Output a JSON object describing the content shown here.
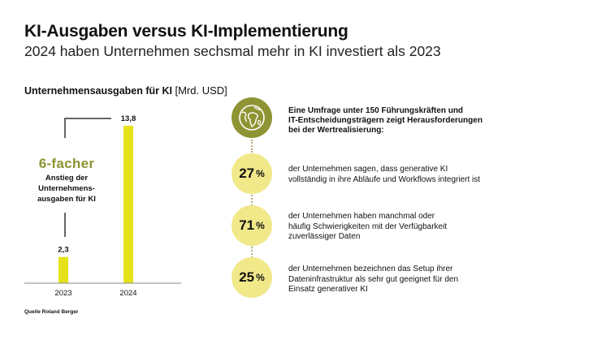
{
  "header": {
    "title": "KI-Ausgaben versus KI-Implementierung",
    "subtitle": "2024 haben Unternehmen sechsmal mehr in KI investiert als 2023"
  },
  "chart_data": {
    "type": "bar",
    "title": "Unternehmensausgaben für KI",
    "unit_label": "[Mrd. USD]",
    "categories": [
      "2023",
      "2024"
    ],
    "values": [
      2.3,
      13.8
    ],
    "value_labels": [
      "2,3",
      "13,8"
    ],
    "xlabel": "",
    "ylabel": "",
    "ylim": [
      0,
      15
    ],
    "grid": false,
    "bar_color": "#e6e21a",
    "annotation": {
      "big": "6-facher",
      "small": [
        "Anstieg der",
        "Unternehmens-",
        "ausgaben für KI"
      ]
    }
  },
  "source": "Quelle Roland Berger",
  "survey": {
    "icon": "globe-icon",
    "intro": [
      "Eine Umfrage unter 150 Führungskräften und",
      "IT-Entscheidungsträgern zeigt Herausforderungen",
      "bei der Wertrealisierung:"
    ],
    "stats": [
      {
        "value": "27",
        "unit": "%",
        "text": [
          "der Unternehmen sagen, dass generative KI",
          "vollständig in ihre Abläufe und Workflows integriert ist"
        ]
      },
      {
        "value": "71",
        "unit": "%",
        "text": [
          "der Unternehmen haben manchmal oder",
          "häufig Schwierigkeiten mit der Verfügbarkeit",
          "zuverlässiger Daten"
        ]
      },
      {
        "value": "25",
        "unit": "%",
        "text": [
          "der Unternehmen bezeichnen das Setup ihrer",
          "Dateninfrastruktur als sehr gut geeignet für den",
          "Einsatz generativer KI"
        ]
      }
    ]
  },
  "colors": {
    "accent_olive": "#8e9433",
    "bar_yellow": "#e6e21a",
    "circle_yellow": "#f1e88a"
  }
}
